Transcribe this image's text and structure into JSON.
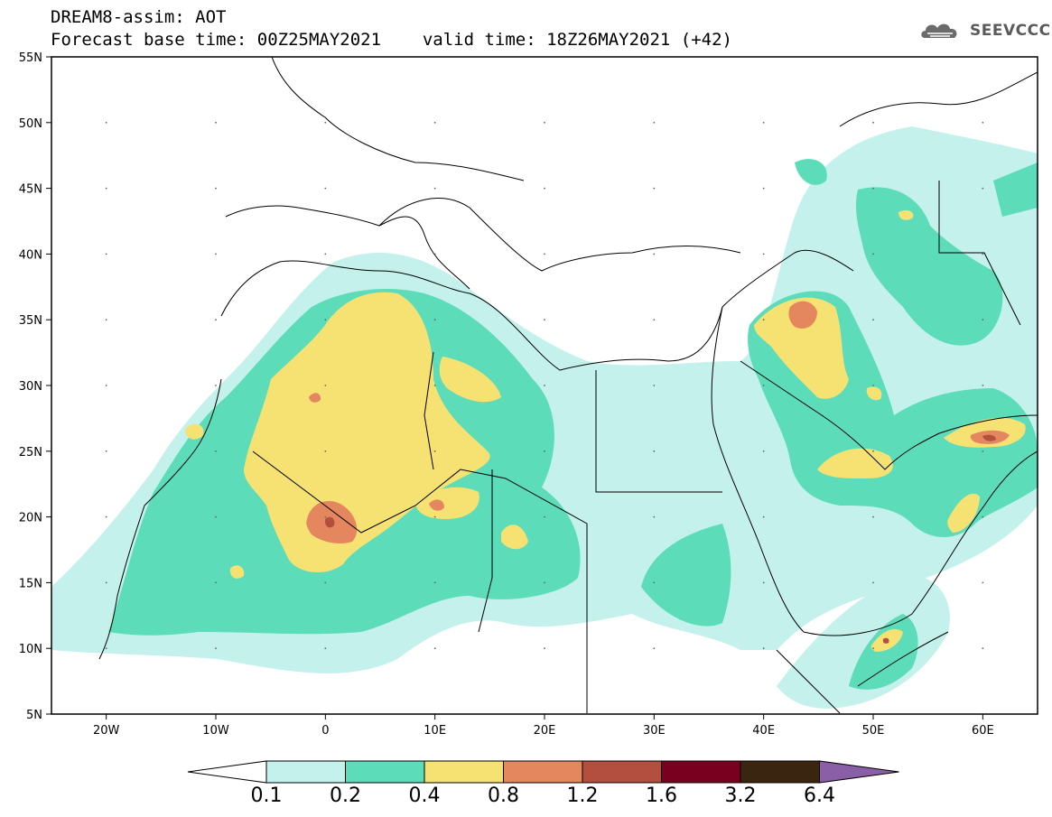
{
  "header": {
    "line1": "DREAM8-assim: AOT",
    "forecast_base": "Forecast base time: 00Z25MAY2021",
    "valid_time": "valid time: 18Z26MAY2021 (+42)"
  },
  "logo": {
    "text": "SEEVCCC",
    "icon": "cloud-logo-icon"
  },
  "map": {
    "lon_range": [
      -25,
      65
    ],
    "lat_range": [
      5,
      55
    ],
    "lat_ticks": [
      "55N",
      "50N",
      "45N",
      "40N",
      "35N",
      "30N",
      "25N",
      "20N",
      "15N",
      "10N",
      "5N"
    ],
    "lon_ticks": [
      "20W",
      "10W",
      "0",
      "10E",
      "20E",
      "30E",
      "40E",
      "50E",
      "60E"
    ]
  },
  "legend": {
    "labels": [
      "0.1",
      "0.2",
      "0.4",
      "0.8",
      "1.2",
      "1.6",
      "3.2",
      "6.4"
    ],
    "colors": [
      "#c4f1ec",
      "#5ddcba",
      "#f5e273",
      "#e5875e",
      "#b24f3e",
      "#7a0020",
      "#3a2510",
      "#8b5fa8"
    ]
  },
  "colors": {
    "level1": "#c4f1ec",
    "level2": "#5ddcba",
    "level3": "#f5e273",
    "level4": "#e5875e",
    "level5": "#b24f3e"
  }
}
